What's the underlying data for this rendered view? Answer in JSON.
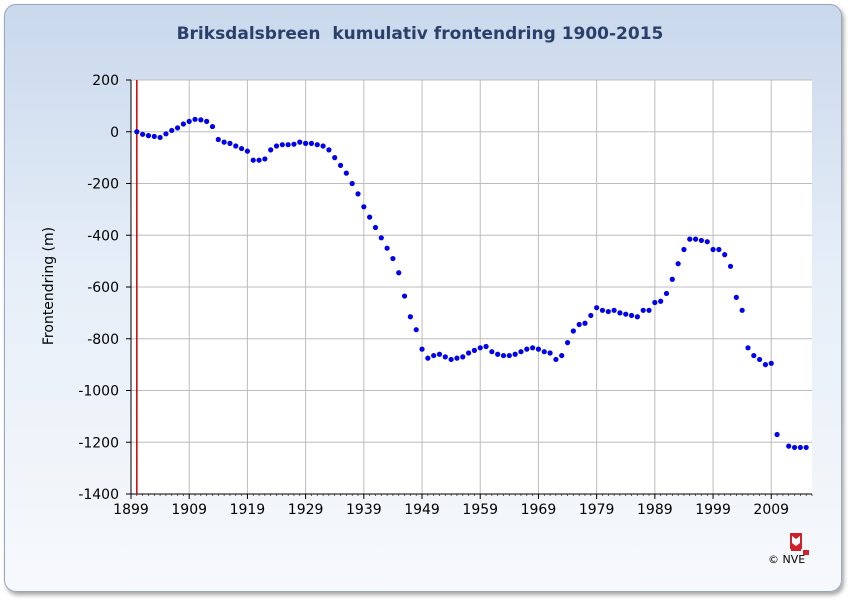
{
  "chart_data": {
    "type": "scatter",
    "title": "Briksdalsbreen  kumulativ frontendring 1900-2015",
    "xlabel": "",
    "ylabel": "Frontendring (m)",
    "xlim": [
      1899,
      2016
    ],
    "ylim": [
      -1400,
      200
    ],
    "x_ticks": [
      1899,
      1909,
      1919,
      1929,
      1939,
      1949,
      1959,
      1969,
      1979,
      1989,
      1999,
      2009
    ],
    "y_ticks": [
      200,
      0,
      -200,
      -400,
      -600,
      -800,
      -1000,
      -1200,
      -1400
    ],
    "grid": true,
    "reference_line_x": 1900,
    "colors": {
      "points": "#0000ee",
      "reference_line": "#cc0000",
      "grid": "#bdbdbd",
      "title": "#2a3f6a"
    },
    "series": [
      {
        "x": [
          1900,
          1901,
          1902,
          1903,
          1904,
          1905,
          1906,
          1907,
          1908,
          1909,
          1910,
          1911,
          1912,
          1913,
          1914,
          1915,
          1916,
          1917,
          1918,
          1919,
          1920,
          1921,
          1922,
          1923,
          1924,
          1925,
          1926,
          1927,
          1928,
          1929,
          1930,
          1931,
          1932,
          1933,
          1934,
          1935,
          1936,
          1937,
          1938,
          1939,
          1940,
          1941,
          1942,
          1943,
          1944,
          1945,
          1946,
          1947,
          1948,
          1949,
          1950,
          1951,
          1952,
          1953,
          1954,
          1955,
          1956,
          1957,
          1958,
          1959,
          1960,
          1961,
          1962,
          1963,
          1964,
          1965,
          1966,
          1967,
          1968,
          1969,
          1970,
          1971,
          1972,
          1973,
          1974,
          1975,
          1976,
          1977,
          1978,
          1979,
          1980,
          1981,
          1982,
          1983,
          1984,
          1985,
          1986,
          1987,
          1988,
          1989,
          1990,
          1991,
          1992,
          1993,
          1994,
          1995,
          1996,
          1997,
          1998,
          1999,
          2000,
          2001,
          2002,
          2003,
          2004,
          2005,
          2006,
          2007,
          2008,
          2009,
          2010,
          2012,
          2013,
          2014,
          2015
        ],
        "values": [
          0,
          -10,
          -15,
          -18,
          -22,
          -8,
          5,
          15,
          30,
          40,
          48,
          46,
          40,
          20,
          -30,
          -40,
          -45,
          -55,
          -65,
          -75,
          -110,
          -110,
          -105,
          -70,
          -55,
          -50,
          -50,
          -48,
          -40,
          -45,
          -45,
          -50,
          -55,
          -70,
          -100,
          -130,
          -160,
          -200,
          -240,
          -290,
          -330,
          -370,
          -410,
          -450,
          -490,
          -545,
          -635,
          -715,
          -765,
          -840,
          -875,
          -865,
          -860,
          -870,
          -880,
          -875,
          -870,
          -855,
          -845,
          -835,
          -830,
          -850,
          -860,
          -865,
          -865,
          -860,
          -850,
          -840,
          -835,
          -840,
          -850,
          -855,
          -880,
          -865,
          -815,
          -770,
          -745,
          -740,
          -710,
          -680,
          -690,
          -695,
          -690,
          -700,
          -705,
          -710,
          -715,
          -690,
          -690,
          -660,
          -655,
          -625,
          -570,
          -510,
          -455,
          -415,
          -415,
          -420,
          -425,
          -455,
          -455,
          -475,
          -520,
          -640,
          -690,
          -835,
          -865,
          -880,
          -900,
          -895,
          -1170,
          -1215,
          -1220,
          -1220,
          -1220
        ]
      }
    ]
  },
  "branding": {
    "copyright": "© NVE",
    "logo_icon": "nve-crest-icon"
  }
}
